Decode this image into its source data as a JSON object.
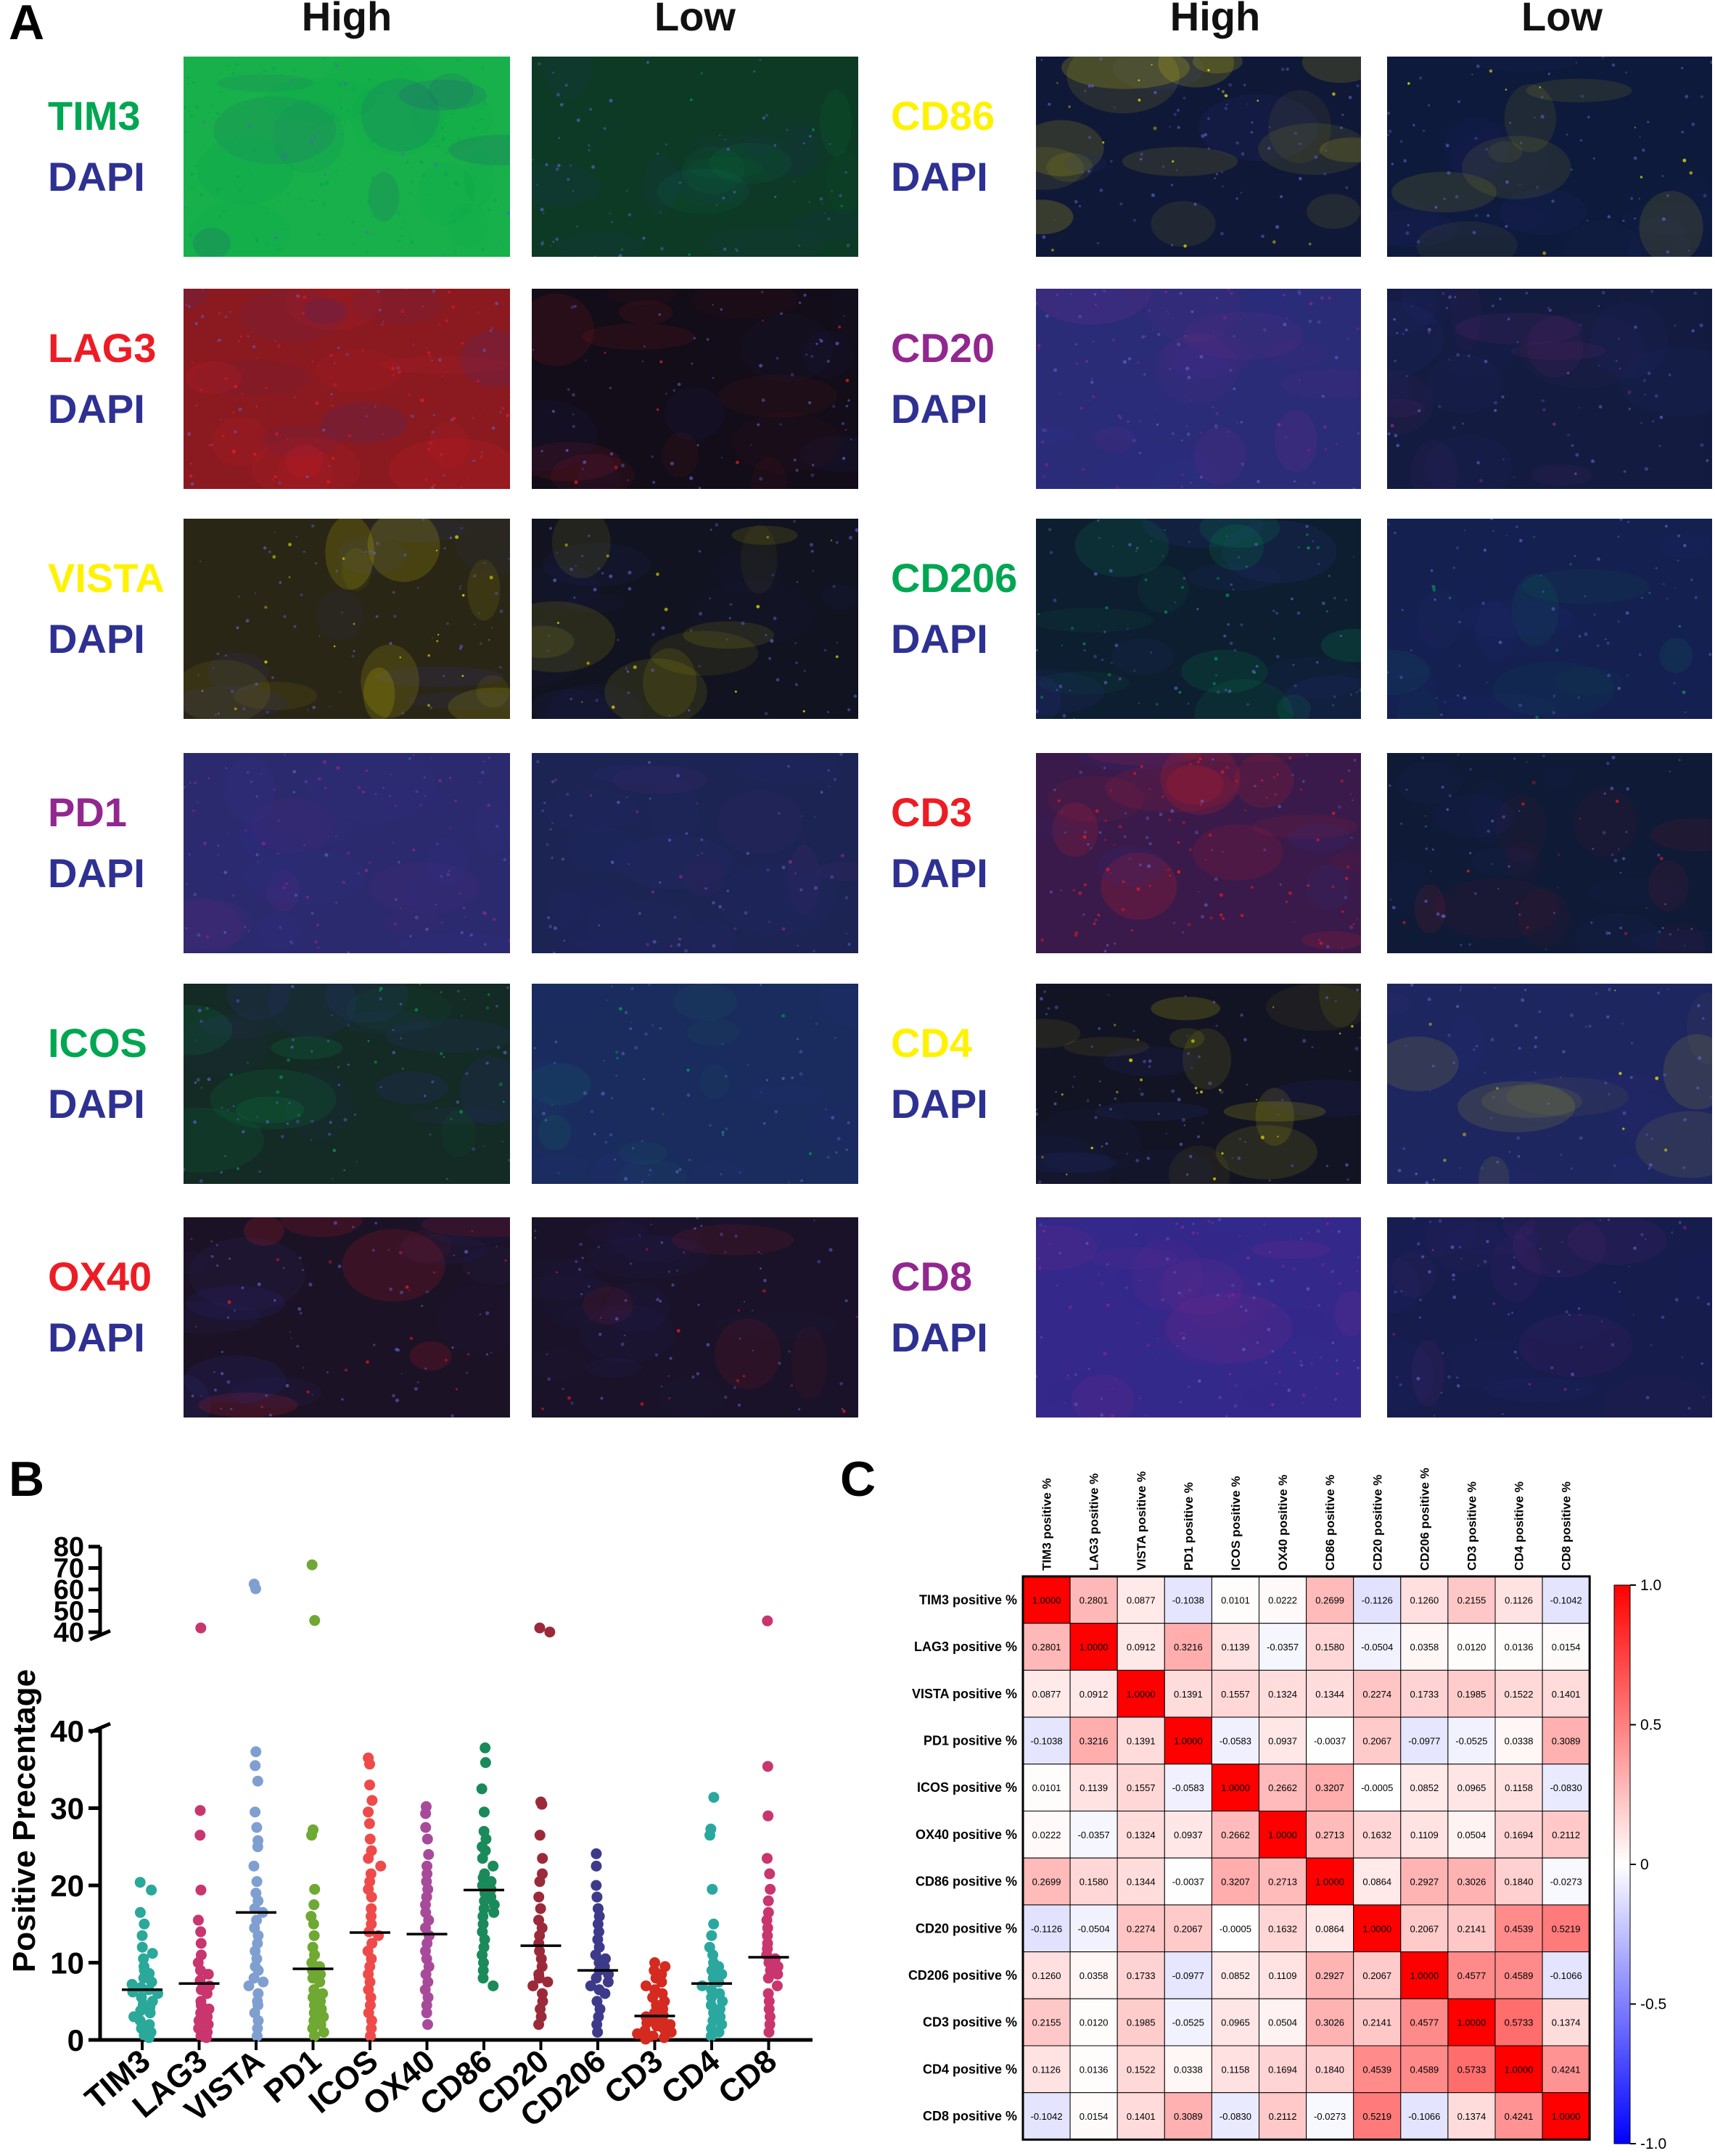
{
  "panels": {
    "A": "A",
    "B": "B",
    "C": "C"
  },
  "panel_a": {
    "col_high": "High",
    "col_low": "Low",
    "counterstain": "DAPI",
    "counterstain_color": "#2e3192",
    "left": [
      {
        "marker": "TIM3",
        "color": "#00a651",
        "tint_high": "#17b04a",
        "tint_low": "#0d3a24",
        "high_level": 0.85
      },
      {
        "marker": "LAG3",
        "color": "#ed1c24",
        "tint_high": "#8a1a20",
        "tint_low": "#120d18",
        "high_level": 0.55
      },
      {
        "marker": "VISTA",
        "color": "#fff200",
        "tint_high": "#2a2616",
        "tint_low": "#111320",
        "high_level": 0.25
      },
      {
        "marker": "PD1",
        "color": "#92278f",
        "tint_high": "#2c2a6e",
        "tint_low": "#1c2454",
        "high_level": 0.45
      },
      {
        "marker": "ICOS",
        "color": "#00a651",
        "tint_high": "#142a24",
        "tint_low": "#1a2c5e",
        "high_level": 0.3
      },
      {
        "marker": "OX40",
        "color": "#ed1c24",
        "tint_high": "#1c1226",
        "tint_low": "#1a1228",
        "high_level": 0.2
      }
    ],
    "right": [
      {
        "marker": "CD86",
        "color": "#fff200",
        "tint_high": "#101838",
        "tint_low": "#0e1a3c",
        "high_level": 0.25
      },
      {
        "marker": "CD20",
        "color": "#92278f",
        "tint_high": "#2a2c78",
        "tint_low": "#131c40",
        "high_level": 0.45
      },
      {
        "marker": "CD206",
        "color": "#00a651",
        "tint_high": "#0d1e30",
        "tint_low": "#142050",
        "high_level": 0.35
      },
      {
        "marker": "CD3",
        "color": "#ed1c24",
        "tint_high": "#3a1a4a",
        "tint_low": "#0f1a36",
        "high_level": 0.6
      },
      {
        "marker": "CD4",
        "color": "#fff200",
        "tint_high": "#121424",
        "tint_low": "#1e2660",
        "high_level": 0.3
      },
      {
        "marker": "CD8",
        "color": "#92278f",
        "tint_high": "#34288a",
        "tint_low": "#161c4c",
        "high_level": 0.5
      }
    ]
  },
  "chart_data": [
    {
      "type": "scatter",
      "subtype": "dot-strip with median line",
      "ylabel": "Positive Precentage",
      "y_axis_broken": true,
      "ylim_lower": [
        0,
        40
      ],
      "ylim_upper": [
        40,
        80
      ],
      "yticks_lower": [
        "0",
        "10",
        "20",
        "30",
        "40"
      ],
      "yticks_upper": [
        "40",
        "50",
        "60",
        "70",
        "80"
      ],
      "categories": [
        "TIM3",
        "LAG3",
        "VISTA",
        "PD1",
        "ICOS",
        "OX40",
        "CD86",
        "CD20",
        "CD206",
        "CD3",
        "CD4",
        "CD8"
      ],
      "colors": [
        "#2aa89a",
        "#c9356f",
        "#7f9fd1",
        "#6fa832",
        "#ef4a4a",
        "#a84a9a",
        "#1a8a5a",
        "#9a2a3a",
        "#3e3a8a",
        "#d42a20",
        "#2aa8a0",
        "#c9356f"
      ],
      "medians": [
        6.5,
        7.3,
        16.5,
        9.2,
        13.9,
        13.7,
        19.4,
        12.2,
        9.0,
        3.1,
        7.3,
        10.7
      ],
      "points": [
        [
          20.4,
          19.4,
          16.5,
          15.0,
          13.5,
          12.0,
          11.2,
          10.5,
          9.5,
          9.0,
          8.6,
          8.0,
          7.5,
          7.2,
          6.8,
          6.5,
          6.2,
          6.0,
          5.5,
          5.0,
          4.6,
          4.2,
          3.8,
          3.5,
          3.0,
          2.5,
          2.0,
          1.5,
          1.0,
          0.6,
          0.3
        ],
        [
          42.0,
          29.7,
          26.5,
          19.4,
          15.5,
          14.0,
          12.5,
          11.0,
          10.0,
          9.0,
          8.5,
          7.7,
          7.0,
          6.5,
          6.0,
          5.0,
          4.5,
          4.0,
          3.5,
          3.0,
          2.5,
          2.0,
          1.5,
          1.0,
          0.5,
          0.3
        ],
        [
          62.5,
          60.3,
          37.3,
          35.5,
          33.5,
          29.5,
          27.5,
          25.8,
          25.0,
          22.5,
          20.5,
          19.0,
          18.0,
          17.0,
          16.5,
          15.5,
          14.5,
          13.5,
          12.5,
          11.5,
          10.5,
          9.5,
          9.0,
          8.0,
          7.5,
          7.0,
          6.0,
          5.0,
          4.5,
          3.5,
          2.5,
          1.5,
          0.5
        ],
        [
          71.5,
          45.5,
          27.2,
          26.5,
          19.5,
          17.5,
          16.0,
          15.0,
          13.5,
          12.0,
          11.0,
          10.0,
          9.5,
          9.0,
          8.5,
          8.0,
          7.5,
          6.5,
          6.0,
          5.5,
          5.0,
          4.5,
          4.0,
          3.5,
          3.0,
          2.5,
          2.0,
          1.5,
          1.0,
          0.5
        ],
        [
          36.5,
          35.7,
          33.0,
          31.0,
          29.5,
          28.0,
          26.0,
          24.5,
          23.5,
          22.5,
          21.5,
          20.5,
          19.5,
          18.5,
          17.0,
          16.0,
          15.0,
          14.0,
          13.5,
          12.5,
          11.5,
          10.5,
          9.5,
          8.5,
          7.5,
          6.5,
          5.5,
          4.5,
          3.5,
          2.5,
          1.5,
          0.5
        ],
        [
          30.2,
          29.3,
          27.5,
          26.0,
          24.0,
          22.5,
          21.5,
          20.5,
          19.5,
          18.5,
          17.5,
          16.5,
          15.5,
          14.5,
          13.5,
          12.5,
          11.5,
          10.5,
          9.5,
          8.5,
          7.5,
          6.5,
          5.5,
          4.5,
          3.5,
          2.0
        ],
        [
          37.8,
          35.9,
          32.5,
          29.5,
          27.0,
          26.0,
          25.0,
          24.5,
          23.5,
          22.5,
          21.5,
          21.0,
          20.5,
          20.0,
          19.5,
          19.0,
          18.5,
          18.0,
          17.5,
          17.0,
          16.5,
          16.0,
          15.0,
          14.0,
          13.0,
          12.0,
          11.0,
          10.0,
          9.0,
          8.0,
          7.0
        ],
        [
          42.0,
          40.1,
          30.8,
          30.5,
          26.5,
          23.5,
          21.5,
          20.5,
          18.5,
          17.0,
          15.5,
          14.5,
          13.5,
          12.5,
          11.5,
          10.5,
          9.5,
          8.5,
          8.0,
          7.5,
          7.0,
          6.0,
          5.0,
          4.0,
          3.0,
          2.0
        ],
        [
          24.1,
          22.5,
          20.0,
          18.5,
          17.0,
          16.0,
          15.0,
          14.0,
          13.0,
          12.0,
          11.0,
          10.5,
          10.0,
          9.5,
          9.0,
          8.5,
          8.0,
          7.5,
          7.0,
          6.5,
          6.0,
          5.0,
          4.0,
          3.0,
          2.0,
          1.0
        ],
        [
          10.0,
          9.5,
          9.0,
          8.5,
          8.0,
          7.5,
          7.0,
          6.5,
          6.0,
          5.5,
          5.0,
          4.5,
          4.0,
          3.5,
          3.2,
          3.0,
          2.8,
          2.5,
          2.2,
          2.0,
          1.8,
          1.5,
          1.2,
          1.0,
          0.8,
          0.5,
          0.3,
          0.1
        ],
        [
          31.4,
          27.3,
          26.5,
          19.5,
          15.0,
          13.5,
          12.0,
          11.0,
          10.0,
          9.5,
          9.0,
          8.5,
          8.0,
          7.5,
          7.0,
          6.5,
          6.0,
          5.5,
          5.0,
          4.5,
          4.0,
          3.5,
          3.0,
          2.5,
          2.0,
          1.5,
          1.0,
          0.5
        ],
        [
          45.3,
          35.4,
          29.0,
          23.5,
          21.5,
          19.5,
          18.0,
          16.5,
          15.5,
          14.5,
          13.5,
          12.5,
          11.8,
          11.0,
          10.5,
          10.0,
          9.5,
          9.0,
          8.5,
          8.0,
          7.0,
          6.0,
          5.0,
          4.0,
          3.0,
          2.0,
          1.0
        ]
      ]
    },
    {
      "type": "heatmap",
      "labels": [
        "TIM3 positive %",
        "LAG3 positive %",
        "VISTA positive %",
        "PD1 positive %",
        "ICOS positive %",
        "OX40 positive %",
        "CD86 positive %",
        "CD20 positive %",
        "CD206 positive %",
        "CD3 positive %",
        "CD4 positive %",
        "CD8 positive %"
      ],
      "matrix": [
        [
          "1.0000",
          "0.2801",
          "0.0877",
          "-0.1038",
          "0.0101",
          "0.0222",
          "0.2699",
          "-0.1126",
          "0.1260",
          "0.2155",
          "0.1126",
          "-0.1042"
        ],
        [
          "0.2801",
          "1.0000",
          "0.0912",
          "0.3216",
          "0.1139",
          "-0.0357",
          "0.1580",
          "-0.0504",
          "0.0358",
          "0.0120",
          "0.0136",
          "0.0154"
        ],
        [
          "0.0877",
          "0.0912",
          "1.0000",
          "0.1391",
          "0.1557",
          "0.1324",
          "0.1344",
          "0.2274",
          "0.1733",
          "0.1985",
          "0.1522",
          "0.1401"
        ],
        [
          "-0.1038",
          "0.3216",
          "0.1391",
          "1.0000",
          "-0.0583",
          "0.0937",
          "-0.0037",
          "0.2067",
          "-0.0977",
          "-0.0525",
          "0.0338",
          "0.3089"
        ],
        [
          "0.0101",
          "0.1139",
          "0.1557",
          "-0.0583",
          "1.0000",
          "0.2662",
          "0.3207",
          "-0.0005",
          "0.0852",
          "0.0965",
          "0.1158",
          "-0.0830"
        ],
        [
          "0.0222",
          "-0.0357",
          "0.1324",
          "0.0937",
          "0.2662",
          "1.0000",
          "0.2713",
          "0.1632",
          "0.1109",
          "0.0504",
          "0.1694",
          "0.2112"
        ],
        [
          "0.2699",
          "0.1580",
          "0.1344",
          "-0.0037",
          "0.3207",
          "0.2713",
          "1.0000",
          "0.0864",
          "0.2927",
          "0.3026",
          "0.1840",
          "-0.0273"
        ],
        [
          "-0.1126",
          "-0.0504",
          "0.2274",
          "0.2067",
          "-0.0005",
          "0.1632",
          "0.0864",
          "1.0000",
          "0.2067",
          "0.2141",
          "0.4539",
          "0.5219"
        ],
        [
          "0.1260",
          "0.0358",
          "0.1733",
          "-0.0977",
          "0.0852",
          "0.1109",
          "0.2927",
          "0.2067",
          "1.0000",
          "0.4577",
          "0.4589",
          "-0.1066"
        ],
        [
          "0.2155",
          "0.0120",
          "0.1985",
          "-0.0525",
          "0.0965",
          "0.0504",
          "0.3026",
          "0.2141",
          "0.4577",
          "1.0000",
          "0.5733",
          "0.1374"
        ],
        [
          "0.1126",
          "0.0136",
          "0.1522",
          "0.0338",
          "0.1158",
          "0.1694",
          "0.1840",
          "0.4539",
          "0.4589",
          "0.5733",
          "1.0000",
          "0.4241"
        ],
        [
          "-0.1042",
          "0.0154",
          "0.1401",
          "0.3089",
          "-0.0830",
          "0.2112",
          "-0.0273",
          "0.5219",
          "-0.1066",
          "0.1374",
          "0.4241",
          "1.0000"
        ]
      ],
      "colorscale": {
        "min": -1.0,
        "max": 1.0,
        "low": "#0000ff",
        "mid": "#ffffff",
        "high": "#ff0000"
      },
      "colorbar_ticks": [
        "1.0",
        "0.5",
        "0",
        "-0.5",
        "-1.0"
      ]
    }
  ]
}
